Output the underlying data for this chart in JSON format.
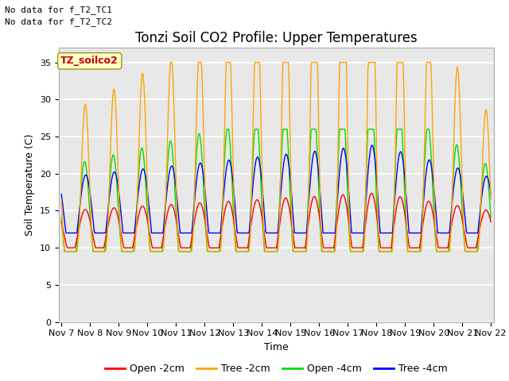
{
  "title": "Tonzi Soil CO2 Profile: Upper Temperatures",
  "xlabel": "Time",
  "ylabel": "Soil Temperature (C)",
  "ylim": [
    0,
    37
  ],
  "yticks": [
    0,
    5,
    10,
    15,
    20,
    25,
    30,
    35
  ],
  "x_labels": [
    "Nov 7",
    "Nov 8",
    "Nov 9",
    "Nov 10",
    "Nov 11",
    "Nov 12",
    "Nov 13",
    "Nov 14",
    "Nov 15",
    "Nov 16",
    "Nov 17",
    "Nov 18",
    "Nov 19",
    "Nov 20",
    "Nov 21",
    "Nov 22"
  ],
  "series_colors": {
    "open_2cm": "#ff0000",
    "tree_2cm": "#ffa500",
    "open_4cm": "#00dd00",
    "tree_4cm": "#0000ff"
  },
  "series_labels": {
    "open_2cm": "Open -2cm",
    "tree_2cm": "Tree -2cm",
    "open_4cm": "Open -4cm",
    "tree_4cm": "Tree -4cm"
  },
  "no_data_text": [
    "No data for f_T2_TC1",
    "No data for f_T2_TC2"
  ],
  "data_label": "TZ_soilco2",
  "fig_bg_color": "#ffffff",
  "plot_bg_color": "#e8e8e8",
  "grid_color": "#ffffff",
  "label_box_facecolor": "#ffffcc",
  "label_box_edgecolor": "#999900",
  "title_fontsize": 12,
  "axis_label_fontsize": 9,
  "tick_fontsize": 8,
  "legend_fontsize": 9,
  "nodata_fontsize": 8
}
